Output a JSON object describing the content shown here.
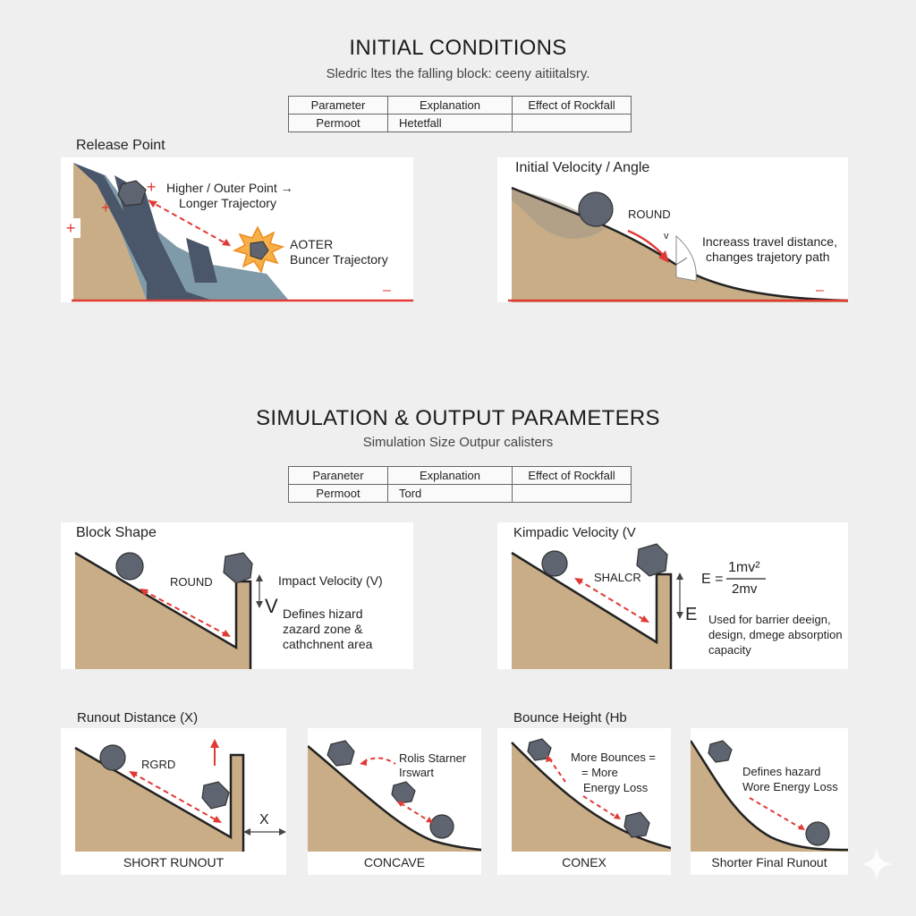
{
  "initial": {
    "title": "INITIAL CONDITIONS",
    "subtitle": "Sledric ltes the falling block: ceeny aitiitalsry.",
    "table": {
      "headers": [
        "Parameter",
        "Explanation",
        "Effect of Rockfall"
      ],
      "row": [
        "Permoot",
        "Hetetfall",
        ""
      ]
    },
    "release": {
      "label": "Release Point",
      "text1": "Higher / Outer Point →",
      "text2": "Longer Trajectory",
      "text3": "AOTER",
      "text4": "Buncer Trajectory",
      "plus": "+",
      "minus": "–"
    },
    "velocity": {
      "label": "Initial Velocity / Angle",
      "round": "ROUND",
      "v": "v",
      "text1": "Increass travel distance,",
      "text2": "changes trajetory path",
      "minus": "–"
    }
  },
  "simulation": {
    "title": "SIMULATION & OUTPUT PARAMETERS",
    "subtitle": "Simulation Size Outpur calisters",
    "table": {
      "headers": [
        "Paraneter",
        "Explanation",
        "Effect of Rockfall"
      ],
      "row": [
        "Permoot",
        "Tord",
        ""
      ]
    },
    "block_shape": {
      "label": "Block Shape",
      "round": "ROUND",
      "impact": "Impact Velocity (V)",
      "v": "V",
      "text1": "Defines hizard",
      "text2": "zazard zone &",
      "text3": "cathchnent area"
    },
    "kinetic": {
      "label": "Kimpadic Velocity (V",
      "shalcr": "SHALCR",
      "eq_lhs": "E =",
      "eq_num": "1mv²",
      "eq_den": "2mv",
      "e": "E",
      "text1": "Used for barrier deeign,",
      "text2": "design, dmege absorption",
      "text3": "capacity"
    },
    "runout": {
      "label": "Runout Distance (X)",
      "rgrd": "RGRD",
      "x": "X",
      "caption": "SHORT RUNOUT"
    },
    "concave": {
      "text1": "Rolis Starner",
      "text2": "Irswart",
      "caption": "CONCAVE"
    },
    "bounce": {
      "label": "Bounce Height (Hb",
      "text1": "More Bounces =",
      "text2": "= More",
      "text3": "Energy Loss",
      "caption": "CONEX"
    },
    "final": {
      "text1": "Defines hazard",
      "text2": "Wore Energy Loss",
      "caption": "Shorter Final Runout"
    }
  },
  "colors": {
    "slope": "#c9ad87",
    "rock": "#5e6470",
    "arrow": "#e03a35",
    "cliff_dark": "#4a5669",
    "cliff_light": "#7f9aa8"
  },
  "icons": [
    "round-rock-icon",
    "angular-rock-icon",
    "impact-burst-icon",
    "sparkle-icon"
  ]
}
